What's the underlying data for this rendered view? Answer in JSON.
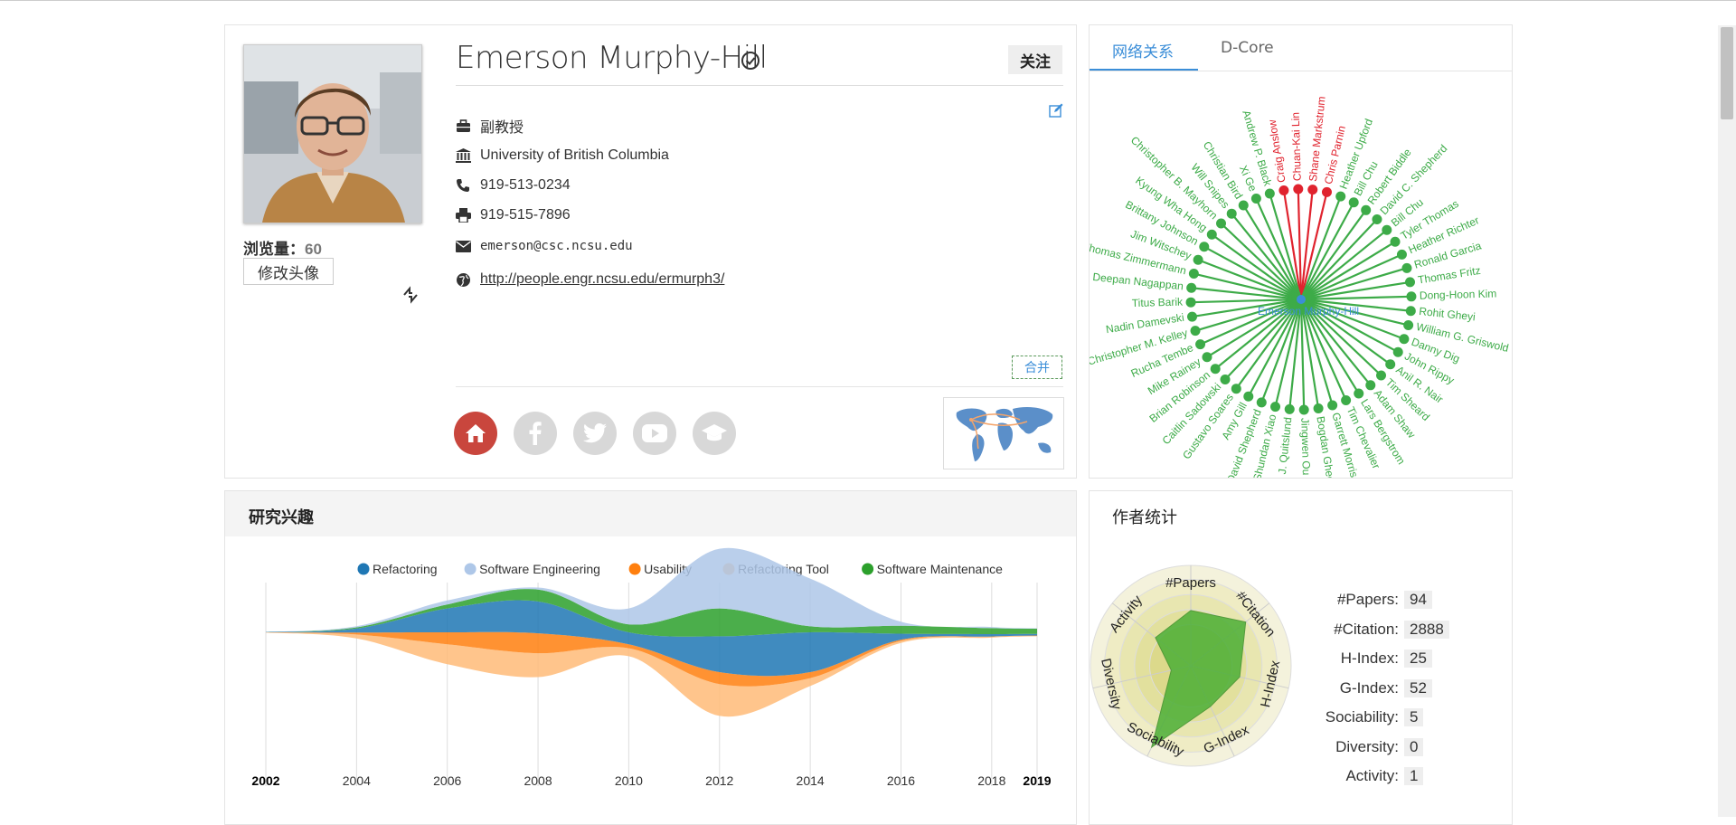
{
  "profile": {
    "name": "Emerson Murphy-Hill",
    "follow_label": "关注",
    "views_label": "浏览量：",
    "views_count": "60",
    "change_avatar_label": "修改头像",
    "position": "副教授",
    "affiliation": "University of British Columbia",
    "phone": "919-513-0234",
    "fax": "919-515-7896",
    "email": "emerson@csc.ncsu.edu",
    "homepage": "http://people.engr.ncsu.edu/ermurph3/",
    "merge_label": "合并"
  },
  "network": {
    "tabs": [
      "网络关系",
      "D-Core"
    ],
    "center": "Emerson Murphy-Hill",
    "nodes": [
      {
        "name": "Craig Anslow",
        "highlight": true
      },
      {
        "name": "Chuan-Kai Lin",
        "highlight": true
      },
      {
        "name": "Shane Markstrum",
        "highlight": true
      },
      {
        "name": "Chris Parnin",
        "highlight": true
      },
      {
        "name": "Heather Upford",
        "highlight": false
      },
      {
        "name": "Bill Chu",
        "highlight": false
      },
      {
        "name": "Robert Biddle",
        "highlight": false
      },
      {
        "name": "David C. Shepherd",
        "highlight": false
      },
      {
        "name": "Bill Chu",
        "highlight": false
      },
      {
        "name": "Tyler Thomas",
        "highlight": false
      },
      {
        "name": "Heather Richter",
        "highlight": false
      },
      {
        "name": "Ronald Garcia",
        "highlight": false
      },
      {
        "name": "Thomas Fritz",
        "highlight": false
      },
      {
        "name": "Dong-Hoon Kim",
        "highlight": false
      },
      {
        "name": "Rohit Gheyi",
        "highlight": false
      },
      {
        "name": "William G. Griswold",
        "highlight": false
      },
      {
        "name": "Danny Dig",
        "highlight": false
      },
      {
        "name": "John Rippy",
        "highlight": false
      },
      {
        "name": "Anil R. Nair",
        "highlight": false
      },
      {
        "name": "Tim Sheard",
        "highlight": false
      },
      {
        "name": "Adam Shaw",
        "highlight": false
      },
      {
        "name": "Lars Bergstrom",
        "highlight": false
      },
      {
        "name": "Tim Chevalier",
        "highlight": false
      },
      {
        "name": "Garrett Morris",
        "highlight": false
      },
      {
        "name": "Bogdan Gheorghiu",
        "highlight": false
      },
      {
        "name": "Jingwen Ou",
        "highlight": false
      },
      {
        "name": "Philip J. Quitslund",
        "highlight": false
      },
      {
        "name": "Shundan Xiao",
        "highlight": false
      },
      {
        "name": "David Shepherd",
        "highlight": false
      },
      {
        "name": "Amy Gill",
        "highlight": false
      },
      {
        "name": "Gustavo Soares",
        "highlight": false
      },
      {
        "name": "Caitlin Sadowski",
        "highlight": false
      },
      {
        "name": "Brian Robinson",
        "highlight": false
      },
      {
        "name": "Mike Rainey",
        "highlight": false
      },
      {
        "name": "Rucha Tembe",
        "highlight": false
      },
      {
        "name": "Christopher M. Kelley",
        "highlight": false
      },
      {
        "name": "Nadin Damevski",
        "highlight": false
      },
      {
        "name": "Titus Barik",
        "highlight": false
      },
      {
        "name": "Deepan Nagappan",
        "highlight": false
      },
      {
        "name": "Thomas Zimmermann",
        "highlight": false
      },
      {
        "name": "Jim Witschey",
        "highlight": false
      },
      {
        "name": "Brittany Johnson",
        "highlight": false
      },
      {
        "name": "Kyung Wha Hong",
        "highlight": false
      },
      {
        "name": "Christopher B. Mayhorn",
        "highlight": false
      },
      {
        "name": "Will Snipes",
        "highlight": false
      },
      {
        "name": "Christian Bird",
        "highlight": false
      },
      {
        "name": "Xi Ge",
        "highlight": false
      },
      {
        "name": "Andrew P. Black",
        "highlight": false
      }
    ]
  },
  "research": {
    "title": "研究兴趣"
  },
  "chart_data": {
    "type": "area",
    "title": "",
    "xlabel": "",
    "ylabel": "",
    "x": [
      2002,
      2004,
      2006,
      2008,
      2010,
      2012,
      2014,
      2016,
      2018,
      2019
    ],
    "xticks": [
      "2002",
      "2004",
      "2006",
      "2008",
      "2010",
      "2012",
      "2014",
      "2016",
      "2018",
      "2019"
    ],
    "series": [
      {
        "name": "Refactoring",
        "color": "#1f77b4",
        "values": [
          0.1,
          1,
          6,
          8,
          3,
          9,
          10,
          1.5,
          0.6,
          0.4
        ]
      },
      {
        "name": "Software Engineering",
        "color": "#aec7e8",
        "values": [
          0,
          0.3,
          1,
          0.5,
          4,
          15,
          12,
          1,
          0.3,
          0.1
        ]
      },
      {
        "name": "Usability",
        "color": "#ff7f0e",
        "values": [
          0,
          0.5,
          3,
          5,
          1,
          3,
          1.5,
          0.3,
          0.1,
          0.1
        ]
      },
      {
        "name": "Refactoring Tool",
        "color": "#ffbb78",
        "values": [
          0.1,
          1,
          5,
          6,
          2,
          8,
          2,
          0.5,
          0.2,
          0.1
        ]
      },
      {
        "name": "Software Maintenance",
        "color": "#2ca02c",
        "values": [
          0,
          0.3,
          1,
          3,
          2,
          7,
          1.5,
          2,
          1.5,
          1.3
        ]
      }
    ]
  },
  "stats": {
    "title": "作者统计",
    "axes": [
      "#Papers",
      "#Citation",
      "H-Index",
      "G-Index",
      "Sociability",
      "Diversity",
      "Activity"
    ],
    "radar_values": [
      0.55,
      0.7,
      0.5,
      0.45,
      0.9,
      0.2,
      0.45
    ],
    "items": [
      {
        "label": "#Papers:",
        "value": "94"
      },
      {
        "label": "#Citation:",
        "value": "2888"
      },
      {
        "label": "H-Index:",
        "value": "25"
      },
      {
        "label": "G-Index:",
        "value": "52"
      },
      {
        "label": "Sociability:",
        "value": "5"
      },
      {
        "label": "Diversity:",
        "value": "0"
      },
      {
        "label": "Activity:",
        "value": "1"
      }
    ]
  },
  "colors": {
    "accent": "#3b8ed8",
    "network_green": "#3dab48",
    "network_red": "#e0232e",
    "home_red": "#c9463d"
  }
}
